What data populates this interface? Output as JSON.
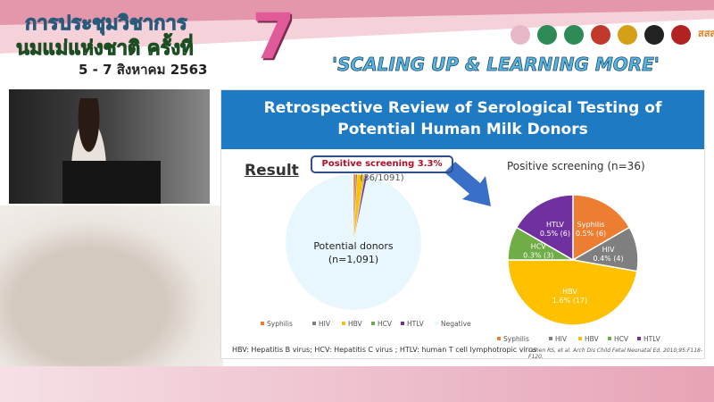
{
  "banner": {
    "line1": "การประชุมวิชาการ",
    "line2": "นมแม่แห่งชาติ ครั้งที่",
    "date": "5 - 7 สิงหาคม 2563",
    "number": "7",
    "slogan": "'SCALING UP & LEARNING MORE'",
    "logo_text": "สสส"
  },
  "slide": {
    "title_line1": "Retrospective Review of Serological Testing of",
    "title_line2": "Potential Human Milk Donors",
    "result_label": "Result",
    "callout_bold": "Positive screening 3.3%",
    "callout_rest": " (36/1091)",
    "left_center_line1": "Potential donors",
    "left_center_line2": "(n=1,091)",
    "footnote": "HBV: Hepatitis B virus; HCV: Hepatitis C virus ; HTLV: human T cell lymphotropic virus",
    "citation": "Cohen RS, et al. Arch Dis Child Fetal Neonatal Ed. 2010;95:F118-F120."
  },
  "chart_data": [
    {
      "type": "pie",
      "title": "",
      "center_label": "Potential donors (n=1,091)",
      "categories": [
        "Syphilis",
        "HIV",
        "HBV",
        "HCV",
        "HTLV",
        "Negative"
      ],
      "values": [
        6,
        4,
        17,
        3,
        6,
        1055
      ],
      "colors": [
        "#ed7d31",
        "#7f7f7f",
        "#ffc000",
        "#70ad47",
        "#7030a0",
        "#e8f6fd"
      ],
      "legend": "bottom"
    },
    {
      "type": "pie",
      "title": "Positive screening (n=36)",
      "categories": [
        "Syphilis",
        "HIV",
        "HBV",
        "HCV",
        "HTLV"
      ],
      "values": [
        6,
        4,
        17,
        3,
        6
      ],
      "labels": [
        "0.5% (6)",
        "0.4% (4)",
        "1.6% (17)",
        "0.3% (3)",
        "0.5% (6)"
      ],
      "colors": [
        "#ed7d31",
        "#7f7f7f",
        "#ffc000",
        "#70ad47",
        "#7030a0"
      ],
      "legend": "bottom"
    }
  ]
}
